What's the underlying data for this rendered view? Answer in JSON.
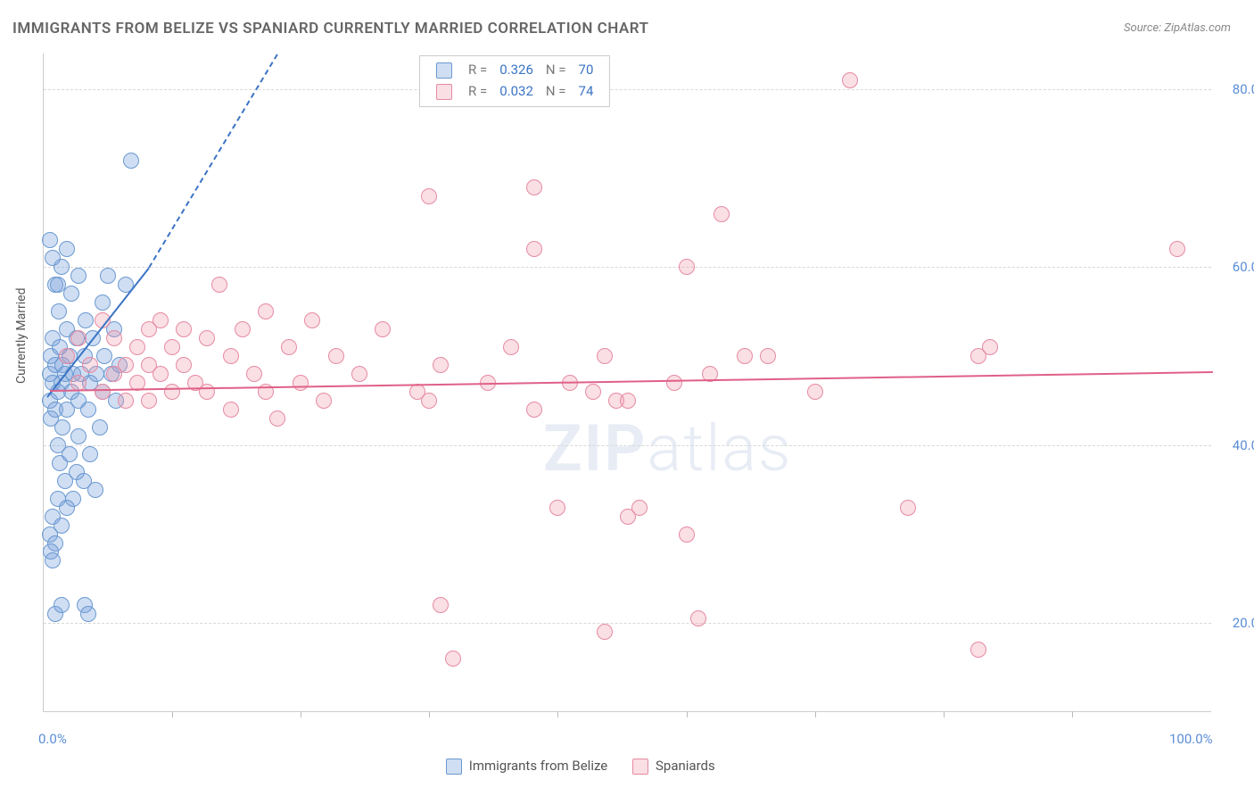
{
  "title": "IMMIGRANTS FROM BELIZE VS SPANIARD CURRENTLY MARRIED CORRELATION CHART",
  "source": "Source: ZipAtlas.com",
  "watermark": "ZIPatlas",
  "y_axis_title": "Currently Married",
  "chart": {
    "type": "scatter",
    "background_color": "#ffffff",
    "grid_color": "#d8d8d8",
    "axis_color": "#cccccc",
    "xlim": [
      0,
      100
    ],
    "ylim": [
      10,
      84
    ],
    "x_ticks_major": [
      0,
      100
    ],
    "x_ticks_minor": [
      11,
      22,
      33,
      44,
      55,
      66,
      77,
      88
    ],
    "x_tick_labels": {
      "0": "0.0%",
      "100": "100.0%"
    },
    "y_ticks": [
      20,
      40,
      60,
      80
    ],
    "y_tick_labels": {
      "20": "20.0%",
      "40": "40.0%",
      "60": "60.0%",
      "80": "80.0%"
    },
    "tick_label_color": "#5b8dd6",
    "tick_label_fontsize": 15,
    "marker_radius": 9,
    "marker_border_width": 1.5,
    "series": [
      {
        "name": "Immigrants from Belize",
        "fill": "rgba(120,160,220,0.35)",
        "stroke": "#6a99d0",
        "R": "0.326",
        "N": "70",
        "trend": {
          "x1": 0.3,
          "y1": 45.5,
          "x2_solid": 9,
          "y2_solid": 60,
          "x2_dash": 20,
          "y2_dash": 84,
          "color": "#3b74c4",
          "width": 2
        },
        "points": [
          [
            0.5,
            45
          ],
          [
            0.5,
            48
          ],
          [
            0.6,
            50
          ],
          [
            0.6,
            43
          ],
          [
            0.8,
            47
          ],
          [
            0.8,
            52
          ],
          [
            1.0,
            49
          ],
          [
            1.0,
            44
          ],
          [
            1.0,
            58
          ],
          [
            1.2,
            46
          ],
          [
            1.2,
            40
          ],
          [
            1.3,
            55
          ],
          [
            1.4,
            38
          ],
          [
            1.4,
            51
          ],
          [
            1.5,
            47
          ],
          [
            1.5,
            60
          ],
          [
            1.6,
            42
          ],
          [
            1.6,
            49
          ],
          [
            1.8,
            36
          ],
          [
            1.8,
            48
          ],
          [
            2.0,
            53
          ],
          [
            2.0,
            44
          ],
          [
            2.0,
            62
          ],
          [
            2.2,
            39
          ],
          [
            2.2,
            50
          ],
          [
            2.4,
            46
          ],
          [
            2.4,
            57
          ],
          [
            2.5,
            34
          ],
          [
            2.5,
            48
          ],
          [
            2.8,
            37
          ],
          [
            2.8,
            52
          ],
          [
            3.0,
            45
          ],
          [
            3.0,
            41
          ],
          [
            3.0,
            59
          ],
          [
            3.2,
            48
          ],
          [
            3.4,
            36
          ],
          [
            3.5,
            50
          ],
          [
            3.6,
            54
          ],
          [
            3.8,
            44
          ],
          [
            4.0,
            47
          ],
          [
            4.0,
            39
          ],
          [
            4.2,
            52
          ],
          [
            4.4,
            35
          ],
          [
            4.5,
            48
          ],
          [
            4.8,
            42
          ],
          [
            5.0,
            56
          ],
          [
            5.0,
            46
          ],
          [
            5.2,
            50
          ],
          [
            5.5,
            59
          ],
          [
            5.8,
            48
          ],
          [
            6.0,
            53
          ],
          [
            6.2,
            45
          ],
          [
            6.5,
            49
          ],
          [
            7.0,
            58
          ],
          [
            0.5,
            30
          ],
          [
            0.8,
            32
          ],
          [
            1.0,
            29
          ],
          [
            1.2,
            34
          ],
          [
            1.5,
            31
          ],
          [
            2.0,
            33
          ],
          [
            0.6,
            28
          ],
          [
            0.8,
            27
          ],
          [
            1.0,
            21
          ],
          [
            1.5,
            22
          ],
          [
            3.5,
            22
          ],
          [
            3.8,
            21
          ],
          [
            7.5,
            72
          ],
          [
            0.5,
            63
          ],
          [
            0.8,
            61
          ],
          [
            1.2,
            58
          ]
        ]
      },
      {
        "name": "Spaniards",
        "fill": "rgba(240,150,170,0.30)",
        "stroke": "#e68aa3",
        "R": "0.032",
        "N": "74",
        "trend": {
          "x1": 0.5,
          "y1": 46.2,
          "x2_solid": 100,
          "y2_solid": 48.3,
          "color": "#e06088",
          "width": 2
        },
        "points": [
          [
            2,
            50
          ],
          [
            3,
            47
          ],
          [
            3,
            52
          ],
          [
            4,
            49
          ],
          [
            5,
            46
          ],
          [
            5,
            54
          ],
          [
            6,
            48
          ],
          [
            6,
            52
          ],
          [
            7,
            45
          ],
          [
            7,
            49
          ],
          [
            8,
            51
          ],
          [
            8,
            47
          ],
          [
            9,
            53
          ],
          [
            9,
            49
          ],
          [
            9,
            45
          ],
          [
            10,
            54
          ],
          [
            10,
            48
          ],
          [
            11,
            51
          ],
          [
            11,
            46
          ],
          [
            12,
            53
          ],
          [
            12,
            49
          ],
          [
            13,
            47
          ],
          [
            14,
            52
          ],
          [
            14,
            46
          ],
          [
            15,
            58
          ],
          [
            16,
            50
          ],
          [
            16,
            44
          ],
          [
            17,
            53
          ],
          [
            18,
            48
          ],
          [
            19,
            55
          ],
          [
            19,
            46
          ],
          [
            20,
            43
          ],
          [
            21,
            51
          ],
          [
            22,
            47
          ],
          [
            23,
            54
          ],
          [
            24,
            45
          ],
          [
            25,
            50
          ],
          [
            27,
            48
          ],
          [
            29,
            53
          ],
          [
            32,
            46
          ],
          [
            33,
            68
          ],
          [
            33,
            45
          ],
          [
            34,
            49
          ],
          [
            34,
            22
          ],
          [
            35,
            16
          ],
          [
            38,
            47
          ],
          [
            40,
            51
          ],
          [
            42,
            62
          ],
          [
            42,
            69
          ],
          [
            42,
            44
          ],
          [
            44,
            33
          ],
          [
            45,
            47
          ],
          [
            47,
            46
          ],
          [
            48,
            50
          ],
          [
            48,
            19
          ],
          [
            49,
            45
          ],
          [
            50,
            45
          ],
          [
            50,
            32
          ],
          [
            51,
            33
          ],
          [
            54,
            47
          ],
          [
            55,
            60
          ],
          [
            55,
            30
          ],
          [
            56,
            20.5
          ],
          [
            57,
            48
          ],
          [
            58,
            66
          ],
          [
            60,
            50
          ],
          [
            62,
            50
          ],
          [
            66,
            46
          ],
          [
            69,
            81
          ],
          [
            74,
            33
          ],
          [
            80,
            50
          ],
          [
            80,
            17
          ],
          [
            97,
            62
          ],
          [
            81,
            51
          ]
        ]
      }
    ]
  },
  "legend_top": {
    "r_label": "R =",
    "n_label": "N =",
    "r_color": "#3b74c4",
    "text_color": "#777"
  },
  "legend_bottom": {
    "items": [
      "Immigrants from Belize",
      "Spaniards"
    ]
  }
}
